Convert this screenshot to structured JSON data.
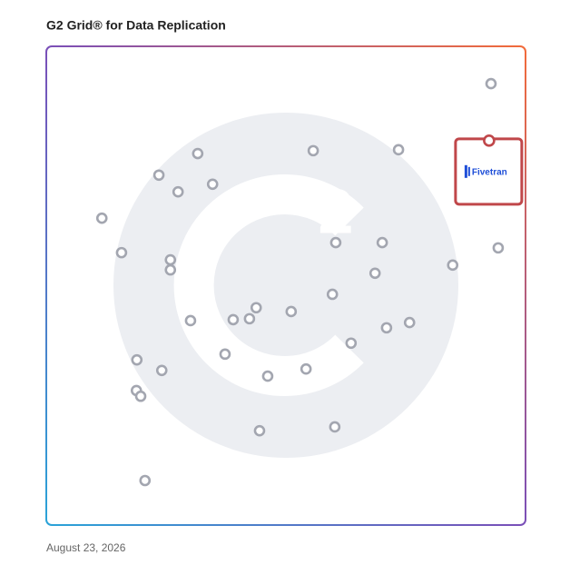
{
  "chart_data": {
    "type": "scatter",
    "title": "G2 Grid® for Data Replication",
    "date": "August 23, 2026",
    "xlim": [
      0,
      100
    ],
    "ylim": [
      0,
      100
    ],
    "point_color": "#a3a6b0",
    "x": [
      92.8,
      73.5,
      55.7,
      31.6,
      23.5,
      27.5,
      34.7,
      11.6,
      60.4,
      70.1,
      94.3,
      15.7,
      25.9,
      25.9,
      84.8,
      68.6,
      59.7,
      43.8,
      51.1,
      39.0,
      42.4,
      30.1,
      75.8,
      71.0,
      63.6,
      37.3,
      18.9,
      24.1,
      46.2,
      54.2,
      18.8,
      19.7,
      60.2,
      44.5,
      20.6
    ],
    "values": [
      92.2,
      78.4,
      78.2,
      77.6,
      73.1,
      69.6,
      71.2,
      64.1,
      59.0,
      59.0,
      57.9,
      56.9,
      55.4,
      53.3,
      54.3,
      52.6,
      48.2,
      45.4,
      44.6,
      42.9,
      43.1,
      42.7,
      42.3,
      41.2,
      38.0,
      35.7,
      34.5,
      32.3,
      31.1,
      32.6,
      28.1,
      26.9,
      20.5,
      19.7,
      9.3
    ],
    "highlight": {
      "name": "Fivetran",
      "x": 92.4,
      "y": 80.3,
      "color": "#c0474a"
    }
  }
}
